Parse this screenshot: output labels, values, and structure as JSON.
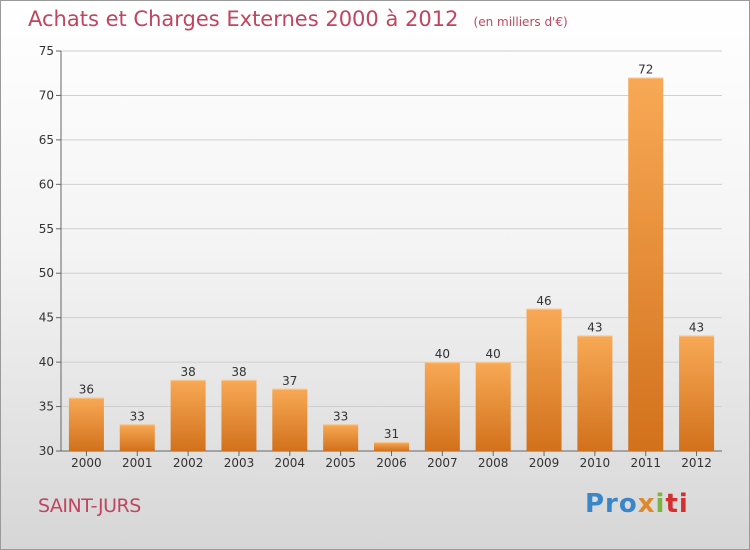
{
  "header": {
    "title": "Achats et Charges Externes 2000 à 2012",
    "subtitle": "(en milliers d'€)"
  },
  "footer": {
    "commune": "SAINT-JURS",
    "logo_text": "Proxiti",
    "logo_parts": [
      "Pro",
      "x",
      "i",
      "ti"
    ]
  },
  "colors": {
    "bar_light": "#f8a955",
    "bar_dark": "#d2711c",
    "title": "#c0455f"
  },
  "chart_data": {
    "type": "bar",
    "categories": [
      "2000",
      "2001",
      "2002",
      "2003",
      "2004",
      "2005",
      "2006",
      "2007",
      "2008",
      "2009",
      "2010",
      "2011",
      "2012"
    ],
    "values": [
      36,
      33,
      38,
      38,
      37,
      33,
      31,
      40,
      40,
      46,
      43,
      72,
      43
    ],
    "ylim": [
      30,
      75
    ],
    "yticks": [
      30,
      35,
      40,
      45,
      50,
      55,
      60,
      65,
      70,
      75
    ],
    "grid": true,
    "data_labels": true
  }
}
